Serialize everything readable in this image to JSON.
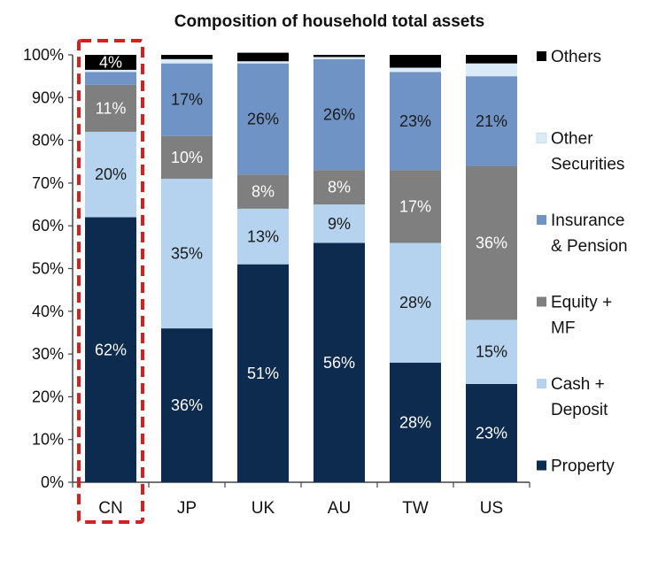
{
  "chart_data": {
    "type": "bar",
    "stacked": true,
    "title": "Composition of household total assets",
    "xlabel": "",
    "ylabel": "",
    "ylim": [
      0,
      100
    ],
    "y_ticks": [
      "0%",
      "10%",
      "20%",
      "30%",
      "40%",
      "50%",
      "60%",
      "70%",
      "80%",
      "90%",
      "100%"
    ],
    "categories": [
      "CN",
      "JP",
      "UK",
      "AU",
      "TW",
      "US"
    ],
    "highlighted_category": "CN",
    "legend_position": "right",
    "series": [
      {
        "name": "Property",
        "legend_lines": [
          "Property"
        ],
        "color": "#0d2a4f",
        "label_color": "#ffffff",
        "values": [
          62,
          36,
          51,
          56,
          28,
          23
        ],
        "labels": [
          "62%",
          "36%",
          "51%",
          "56%",
          "28%",
          "23%"
        ]
      },
      {
        "name": "Cash + Deposit",
        "legend_lines": [
          "Cash +",
          "Deposit"
        ],
        "color": "#b5d3ee",
        "label_color": "#1a1a1a",
        "values": [
          20,
          35,
          13,
          9,
          28,
          15
        ],
        "labels": [
          "20%",
          "35%",
          "13%",
          "9%",
          "28%",
          "15%"
        ]
      },
      {
        "name": "Equity + MF",
        "legend_lines": [
          "Equity +",
          "MF"
        ],
        "color": "#7f7f7f",
        "label_color": "#ffffff",
        "values": [
          11,
          10,
          8,
          8,
          17,
          36
        ],
        "labels": [
          "11%",
          "10%",
          "8%",
          "8%",
          "17%",
          "36%"
        ]
      },
      {
        "name": "Insurance & Pension",
        "legend_lines": [
          "Insurance",
          "& Pension"
        ],
        "color": "#6f93c4",
        "label_color": "#1a1a1a",
        "values": [
          3,
          17,
          26,
          26,
          23,
          21
        ],
        "labels": [
          "",
          "17%",
          "26%",
          "26%",
          "23%",
          "21%"
        ]
      },
      {
        "name": "Other Securities",
        "legend_lines": [
          "Other",
          "Securities"
        ],
        "color": "#dcebf8",
        "label_color": "#1a1a1a",
        "values": [
          0.5,
          1,
          0.5,
          0.5,
          1,
          3
        ],
        "labels": [
          "",
          "",
          "",
          "",
          "",
          ""
        ]
      },
      {
        "name": "Others",
        "legend_lines": [
          "Others"
        ],
        "color": "#000000",
        "label_color": "#ffffff",
        "values": [
          3.5,
          1,
          2,
          0.5,
          3,
          2
        ],
        "labels": [
          "4%",
          "",
          "",
          "",
          "",
          ""
        ]
      }
    ]
  }
}
